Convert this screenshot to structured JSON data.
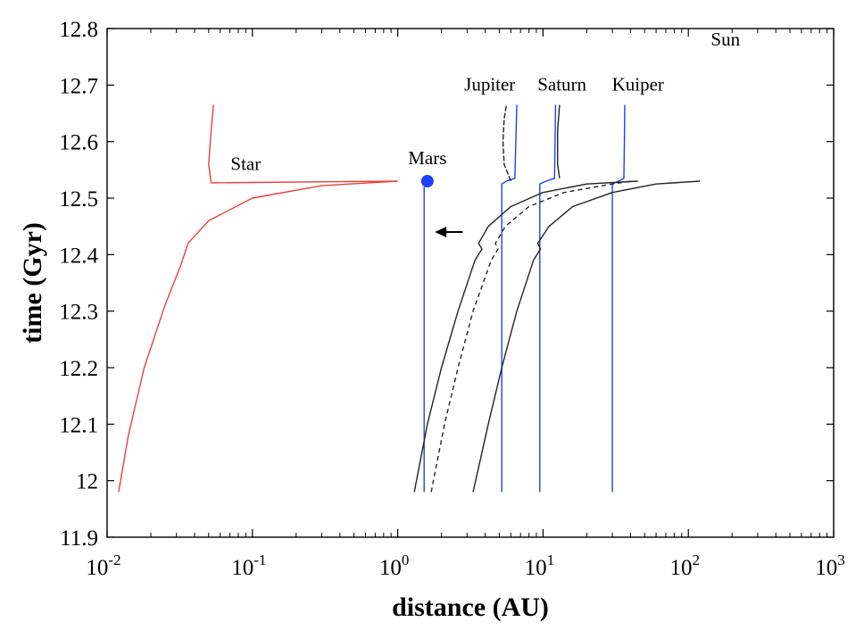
{
  "chart_data": {
    "type": "line",
    "xscale": "log",
    "xlim": [
      0.01,
      1000
    ],
    "ylim": [
      11.9,
      12.8
    ],
    "xlabel": "distance (AU)",
    "ylabel": "time (Gyr)",
    "x_ticks": [
      {
        "value": 0.01,
        "base": "10",
        "exp": "-2"
      },
      {
        "value": 0.1,
        "base": "10",
        "exp": "-1"
      },
      {
        "value": 1,
        "base": "10",
        "exp": "0"
      },
      {
        "value": 10,
        "base": "10",
        "exp": "1"
      },
      {
        "value": 100,
        "base": "10",
        "exp": "2"
      },
      {
        "value": 1000,
        "base": "10",
        "exp": "3"
      }
    ],
    "y_ticks": [
      "11.9",
      "12",
      "12.1",
      "12.2",
      "12.3",
      "12.4",
      "12.5",
      "12.6",
      "12.7",
      "12.8"
    ],
    "annotations": [
      {
        "text": "Sun",
        "x": 180,
        "y": 12.77
      },
      {
        "text": "Jupiter",
        "x": 4.3,
        "y": 12.69
      },
      {
        "text": "Saturn",
        "x": 13.5,
        "y": 12.69
      },
      {
        "text": "Kuiper",
        "x": 45,
        "y": 12.69
      },
      {
        "text": "Star",
        "x": 0.09,
        "y": 12.55
      },
      {
        "text": "Mars",
        "x": 1.6,
        "y": 12.56
      }
    ],
    "marker": {
      "name": "Mars",
      "x": 1.6,
      "y": 12.53,
      "color": "#1f3fff"
    },
    "arrow": {
      "from": [
        2.8,
        12.44
      ],
      "to": [
        1.8,
        12.44
      ]
    },
    "series": [
      {
        "name": "Star",
        "color": "#e8413a",
        "points": [
          [
            0.012,
            11.98
          ],
          [
            0.014,
            12.08
          ],
          [
            0.018,
            12.2
          ],
          [
            0.025,
            12.31
          ],
          [
            0.032,
            12.38
          ],
          [
            0.034,
            12.4
          ],
          [
            0.036,
            12.42
          ],
          [
            0.05,
            12.46
          ],
          [
            0.1,
            12.5
          ],
          [
            0.3,
            12.522
          ],
          [
            1.0,
            12.53
          ]
        ]
      },
      {
        "name": "Star (after encounter)",
        "color": "#e8413a",
        "points": [
          [
            1.0,
            12.53
          ],
          [
            0.052,
            12.527
          ],
          [
            0.05,
            12.56
          ],
          [
            0.052,
            12.62
          ],
          [
            0.054,
            12.665
          ]
        ]
      },
      {
        "name": "Mars",
        "color": "#1f3fff",
        "points": [
          [
            1.52,
            11.98
          ],
          [
            1.52,
            12.52
          ]
        ]
      },
      {
        "name": "Jupiter",
        "color": "#1f3fff",
        "points": [
          [
            5.2,
            11.98
          ],
          [
            5.2,
            12.525
          ],
          [
            5.6,
            12.53
          ],
          [
            6.4,
            12.535
          ],
          [
            6.5,
            12.6
          ],
          [
            6.6,
            12.665
          ]
        ]
      },
      {
        "name": "Saturn",
        "color": "#1f3fff",
        "points": [
          [
            9.5,
            11.98
          ],
          [
            9.5,
            12.525
          ],
          [
            10.5,
            12.53
          ],
          [
            12.0,
            12.535
          ],
          [
            12.1,
            12.6
          ],
          [
            12.2,
            12.665
          ]
        ]
      },
      {
        "name": "Kuiper",
        "color": "#1f3fff",
        "points": [
          [
            30.0,
            11.98
          ],
          [
            30.0,
            12.525
          ],
          [
            33.0,
            12.53
          ],
          [
            36.0,
            12.535
          ],
          [
            36.3,
            12.6
          ],
          [
            36.5,
            12.665
          ]
        ]
      },
      {
        "name": "Sun track (inner)",
        "color": "#222222",
        "dash": "",
        "points": [
          [
            1.3,
            11.98
          ],
          [
            1.6,
            12.1
          ],
          [
            2.0,
            12.2
          ],
          [
            2.6,
            12.3
          ],
          [
            3.4,
            12.39
          ],
          [
            3.8,
            12.41
          ],
          [
            3.6,
            12.42
          ],
          [
            4.2,
            12.45
          ],
          [
            6.0,
            12.485
          ],
          [
            10.0,
            12.51
          ],
          [
            20.0,
            12.525
          ],
          [
            45.0,
            12.53
          ]
        ]
      },
      {
        "name": "Sun track (dashed)",
        "color": "#222222",
        "dash": "5,4",
        "points": [
          [
            1.7,
            11.98
          ],
          [
            2.1,
            12.1
          ],
          [
            2.6,
            12.2
          ],
          [
            3.3,
            12.3
          ],
          [
            4.4,
            12.39
          ],
          [
            4.9,
            12.41
          ],
          [
            4.7,
            12.42
          ],
          [
            5.5,
            12.45
          ],
          [
            8.0,
            12.485
          ],
          [
            14.0,
            12.51
          ],
          [
            30.0,
            12.525
          ],
          [
            40.0,
            12.53
          ]
        ]
      },
      {
        "name": "Sun track (outer)",
        "color": "#222222",
        "dash": "",
        "points": [
          [
            3.3,
            11.98
          ],
          [
            4.2,
            12.1
          ],
          [
            5.2,
            12.2
          ],
          [
            6.6,
            12.3
          ],
          [
            8.6,
            12.39
          ],
          [
            9.6,
            12.41
          ],
          [
            9.2,
            12.42
          ],
          [
            11.0,
            12.45
          ],
          [
            16.0,
            12.485
          ],
          [
            30.0,
            12.51
          ],
          [
            60.0,
            12.525
          ],
          [
            120.0,
            12.53
          ]
        ]
      },
      {
        "name": "Jupiter-region curl",
        "color": "#222222",
        "dash": "6,2",
        "points": [
          [
            6.0,
            12.53
          ],
          [
            5.4,
            12.56
          ],
          [
            5.3,
            12.6
          ],
          [
            5.4,
            12.64
          ],
          [
            5.6,
            12.665
          ]
        ]
      },
      {
        "name": "Saturn-region curl",
        "color": "#222222",
        "dash": "",
        "points": [
          [
            13.0,
            12.535
          ],
          [
            12.6,
            12.56
          ],
          [
            12.6,
            12.62
          ],
          [
            13.0,
            12.665
          ]
        ]
      }
    ]
  }
}
